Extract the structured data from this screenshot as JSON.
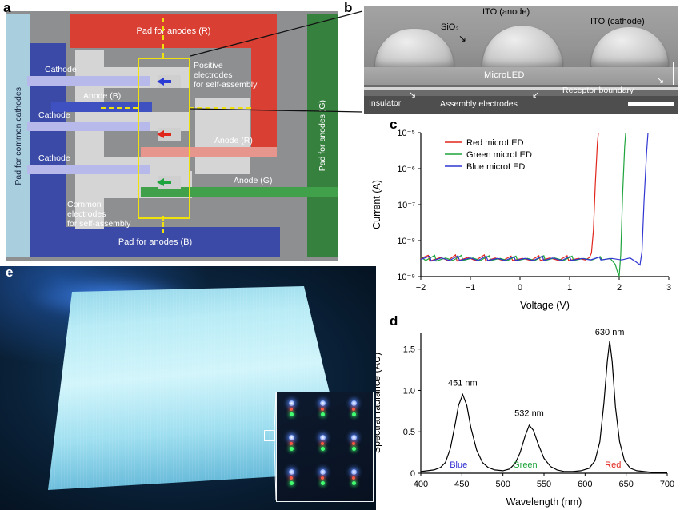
{
  "panel_labels": {
    "a": "a",
    "b": "b",
    "c": "c",
    "d": "d",
    "e": "e"
  },
  "panel_a": {
    "pad_left": "Pad for common cathodes",
    "pad_top": "Pad for anodes (R)",
    "pad_right": "Pad for anodes (G)",
    "pad_bottom": "Pad for anodes (B)",
    "cathode_1": "Cathode",
    "anode_b": "Anode (B)",
    "cathode_2": "Cathode",
    "anode_r": "Anode (R)",
    "cathode_3": "Cathode",
    "anode_g": "Anode (G)",
    "positive_electrodes": "Positive\nelectrodes\nfor self-assembly",
    "common_electrodes": "Common\nelectrodes\nfor self-assembly",
    "arrow_colors": {
      "blue": "#2a3cd4",
      "red": "#e0261c",
      "green": "#1ea43c"
    }
  },
  "panel_b": {
    "sio2": "SiO₂",
    "ito_anode": "ITO (anode)",
    "ito_cathode": "ITO (cathode)",
    "microled": "MicroLED",
    "insulator": "Insulator",
    "assembly_electrodes": "Assembly electrodes",
    "receptor_boundary": "Receptor boundary"
  },
  "chart_data": [
    {
      "id": "iv-curves",
      "type": "line",
      "title": "",
      "xlabel": "Voltage (V)",
      "ylabel": "Current (A)",
      "xlim": [
        -2,
        3
      ],
      "ylog": true,
      "ylim": [
        1e-09,
        1e-05
      ],
      "xticks": [
        -2,
        -1,
        0,
        1,
        2,
        3
      ],
      "xtick_labels": [
        "−2",
        "−1",
        "0",
        "1",
        "2",
        "3"
      ],
      "yticks": [
        1e-05,
        1e-06,
        1e-07,
        1e-08,
        1e-09
      ],
      "ytick_labels": [
        "10⁻⁵",
        "10⁻⁶",
        "10⁻⁷",
        "10⁻⁸",
        "10⁻⁹"
      ],
      "legend_position": "upper-left",
      "grid": false,
      "legend": [
        {
          "label": "Red microLED",
          "color": "#e0261c"
        },
        {
          "label": "Green microLED",
          "color": "#1ea43c"
        },
        {
          "label": "Blue microLED",
          "color": "#3136d2"
        }
      ],
      "series": [
        {
          "name": "Red microLED",
          "color": "#e0261c",
          "points": [
            [
              -2,
              3.2e-09
            ],
            [
              -1.85,
              3.9e-09
            ],
            [
              -1.82,
              2.7e-09
            ],
            [
              -1.6,
              3.4e-09
            ],
            [
              -1.45,
              2.8e-09
            ],
            [
              -1.3,
              4e-09
            ],
            [
              -1.27,
              2.7e-09
            ],
            [
              -1.05,
              3.4e-09
            ],
            [
              -0.9,
              2.8e-09
            ],
            [
              -0.72,
              4e-09
            ],
            [
              -0.69,
              2.7e-09
            ],
            [
              -0.5,
              3.3e-09
            ],
            [
              -0.35,
              2.8e-09
            ],
            [
              -0.18,
              3.7e-09
            ],
            [
              -0.15,
              2.8e-09
            ],
            [
              0.05,
              3.2e-09
            ],
            [
              0.22,
              2.8e-09
            ],
            [
              0.38,
              3.8e-09
            ],
            [
              0.41,
              2.8e-09
            ],
            [
              0.6,
              3.3e-09
            ],
            [
              0.78,
              2.8e-09
            ],
            [
              0.95,
              3.8e-09
            ],
            [
              0.98,
              2.8e-09
            ],
            [
              1.18,
              3.2e-09
            ],
            [
              1.32,
              2.9e-09
            ],
            [
              1.4,
              3.4e-09
            ],
            [
              1.44,
              4.5e-09
            ],
            [
              1.48,
              2e-08
            ],
            [
              1.52,
              4e-07
            ],
            [
              1.56,
              5e-06
            ],
            [
              1.58,
              1e-05
            ]
          ]
        },
        {
          "name": "Green microLED",
          "color": "#1ea43c",
          "points": [
            [
              -2,
              3.5e-09
            ],
            [
              -1.9,
              2.8e-09
            ],
            [
              -1.72,
              3.9e-09
            ],
            [
              -1.69,
              2.7e-09
            ],
            [
              -1.5,
              3.3e-09
            ],
            [
              -1.35,
              2.8e-09
            ],
            [
              -1.18,
              3.9e-09
            ],
            [
              -1.15,
              2.8e-09
            ],
            [
              -0.95,
              3.3e-09
            ],
            [
              -0.8,
              2.8e-09
            ],
            [
              -0.62,
              3.8e-09
            ],
            [
              -0.59,
              2.8e-09
            ],
            [
              -0.4,
              3.2e-09
            ],
            [
              -0.25,
              2.8e-09
            ],
            [
              -0.08,
              3.7e-09
            ],
            [
              -0.05,
              2.8e-09
            ],
            [
              0.15,
              3.2e-09
            ],
            [
              0.3,
              2.8e-09
            ],
            [
              0.48,
              3.8e-09
            ],
            [
              0.51,
              2.8e-09
            ],
            [
              0.7,
              3.3e-09
            ],
            [
              0.88,
              2.8e-09
            ],
            [
              1.05,
              3.7e-09
            ],
            [
              1.08,
              2.8e-09
            ],
            [
              1.28,
              3.2e-09
            ],
            [
              1.45,
              2.9e-09
            ],
            [
              1.62,
              3.6e-09
            ],
            [
              1.65,
              2.9e-09
            ],
            [
              1.82,
              3.2e-09
            ],
            [
              1.92,
              2.2e-09
            ],
            [
              1.97,
              1.3e-09
            ],
            [
              2.0,
              1.05e-09
            ],
            [
              2.03,
              4e-09
            ],
            [
              2.07,
              2e-07
            ],
            [
              2.11,
              4e-06
            ],
            [
              2.13,
              1e-05
            ]
          ]
        },
        {
          "name": "Blue microLED",
          "color": "#3136d2",
          "points": [
            [
              -2,
              3e-09
            ],
            [
              -1.82,
              3.7e-09
            ],
            [
              -1.79,
              2.7e-09
            ],
            [
              -1.58,
              3.3e-09
            ],
            [
              -1.42,
              2.8e-09
            ],
            [
              -1.25,
              3.8e-09
            ],
            [
              -1.22,
              2.8e-09
            ],
            [
              -1.0,
              3.3e-09
            ],
            [
              -0.85,
              2.8e-09
            ],
            [
              -0.68,
              3.7e-09
            ],
            [
              -0.65,
              2.8e-09
            ],
            [
              -0.45,
              3.2e-09
            ],
            [
              -0.3,
              2.8e-09
            ],
            [
              -0.12,
              3.6e-09
            ],
            [
              -0.09,
              2.8e-09
            ],
            [
              0.1,
              3.2e-09
            ],
            [
              0.27,
              2.8e-09
            ],
            [
              0.45,
              3.7e-09
            ],
            [
              0.48,
              2.8e-09
            ],
            [
              0.66,
              3.3e-09
            ],
            [
              0.84,
              2.8e-09
            ],
            [
              1.0,
              3.6e-09
            ],
            [
              1.03,
              2.8e-09
            ],
            [
              1.25,
              3.2e-09
            ],
            [
              1.42,
              2.9e-09
            ],
            [
              1.6,
              3.5e-09
            ],
            [
              1.63,
              2.9e-09
            ],
            [
              1.85,
              3.2e-09
            ],
            [
              2.05,
              2.9e-09
            ],
            [
              2.22,
              3.3e-09
            ],
            [
              2.35,
              2.5e-09
            ],
            [
              2.42,
              2.1e-09
            ],
            [
              2.46,
              5e-09
            ],
            [
              2.5,
              1.2e-07
            ],
            [
              2.55,
              2.5e-06
            ],
            [
              2.58,
              1e-05
            ]
          ]
        }
      ]
    },
    {
      "id": "emission-spectrum",
      "type": "line",
      "title": "",
      "xlabel": "Wavelength (nm)",
      "ylabel": "Spectral radiance (AU)",
      "xlim": [
        400,
        700
      ],
      "ylog": false,
      "ylim": [
        0,
        1.7
      ],
      "xticks": [
        400,
        450,
        500,
        550,
        600,
        650,
        700
      ],
      "xtick_labels": [
        "400",
        "450",
        "500",
        "550",
        "600",
        "650",
        "700"
      ],
      "yticks": [
        0,
        0.5,
        1.0,
        1.5
      ],
      "ytick_labels": [
        "0",
        "0.5",
        "1.0",
        "1.5"
      ],
      "grid": false,
      "annotations": [
        {
          "text": "451 nm",
          "x": 451,
          "y": 1.06,
          "color": "#000000"
        },
        {
          "text": "532 nm",
          "x": 532,
          "y": 0.69,
          "color": "#000000"
        },
        {
          "text": "630 nm",
          "x": 630,
          "y": 1.67,
          "color": "#000000"
        },
        {
          "text": "Blue",
          "x": 446,
          "y": 0.07,
          "color": "#2a2ad0"
        },
        {
          "text": "Green",
          "x": 527,
          "y": 0.07,
          "color": "#1ea43c"
        },
        {
          "text": "Red",
          "x": 634,
          "y": 0.07,
          "color": "#e0261c"
        }
      ],
      "series": [
        {
          "name": "RGB spectrum",
          "color": "#000000",
          "points": [
            [
              400,
              0.02
            ],
            [
              408,
              0.03
            ],
            [
              416,
              0.04
            ],
            [
              424,
              0.07
            ],
            [
              430,
              0.13
            ],
            [
              436,
              0.3
            ],
            [
              442,
              0.6
            ],
            [
              446,
              0.82
            ],
            [
              451,
              0.95
            ],
            [
              456,
              0.82
            ],
            [
              461,
              0.55
            ],
            [
              468,
              0.28
            ],
            [
              475,
              0.13
            ],
            [
              482,
              0.07
            ],
            [
              490,
              0.04
            ],
            [
              500,
              0.03
            ],
            [
              508,
              0.05
            ],
            [
              515,
              0.12
            ],
            [
              521,
              0.25
            ],
            [
              527,
              0.45
            ],
            [
              532,
              0.58
            ],
            [
              537,
              0.52
            ],
            [
              543,
              0.35
            ],
            [
              550,
              0.18
            ],
            [
              558,
              0.08
            ],
            [
              566,
              0.04
            ],
            [
              575,
              0.02
            ],
            [
              585,
              0.02
            ],
            [
              595,
              0.03
            ],
            [
              605,
              0.06
            ],
            [
              612,
              0.15
            ],
            [
              618,
              0.38
            ],
            [
              623,
              0.85
            ],
            [
              627,
              1.35
            ],
            [
              630,
              1.6
            ],
            [
              633,
              1.35
            ],
            [
              637,
              0.8
            ],
            [
              642,
              0.38
            ],
            [
              648,
              0.15
            ],
            [
              655,
              0.06
            ],
            [
              663,
              0.03
            ],
            [
              672,
              0.02
            ],
            [
              682,
              0.01
            ],
            [
              692,
              0.01
            ],
            [
              700,
              0.01
            ]
          ]
        }
      ]
    }
  ]
}
